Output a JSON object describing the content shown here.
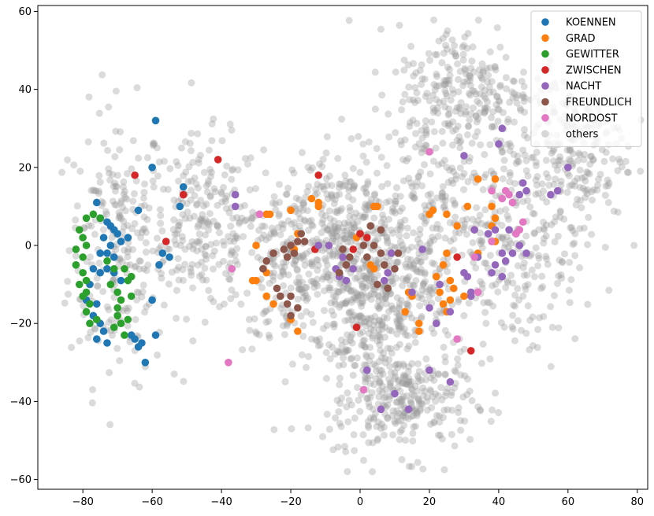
{
  "chart_data": {
    "type": "scatter",
    "title": "",
    "xlabel": "",
    "ylabel": "",
    "xlim": [
      -93,
      83
    ],
    "ylim": [
      -62.5,
      61.5
    ],
    "x_ticks": [
      -80,
      -60,
      -40,
      -20,
      0,
      20,
      40,
      60,
      80
    ],
    "y_ticks": [
      -60,
      -40,
      -20,
      0,
      20,
      40,
      60
    ],
    "grid": false,
    "legend_position": "top-right",
    "colors": {
      "KOENNEN": "#1f77b4",
      "GRAD": "#ff7f0e",
      "GEWITTER": "#2ca02c",
      "ZWISCHEN": "#d62728",
      "NACHT": "#9467bd",
      "FREUNDLICH": "#8c564b",
      "NORDOST": "#e377c2",
      "others": "#999999"
    },
    "series": [
      {
        "name": "KOENNEN",
        "points": [
          [
            -59,
            32
          ],
          [
            -60,
            20
          ],
          [
            -64,
            9
          ],
          [
            -52,
            10
          ],
          [
            -51,
            15
          ],
          [
            -76,
            11
          ],
          [
            -75,
            7
          ],
          [
            -73,
            6
          ],
          [
            -72,
            5
          ],
          [
            -71,
            4
          ],
          [
            -70,
            3
          ],
          [
            -74,
            2
          ],
          [
            -72,
            0
          ],
          [
            -69,
            1
          ],
          [
            -67,
            2
          ],
          [
            -75,
            -2
          ],
          [
            -73,
            -2
          ],
          [
            -71,
            -3
          ],
          [
            -77,
            -6
          ],
          [
            -75,
            -7
          ],
          [
            -73,
            -6
          ],
          [
            -71,
            -7
          ],
          [
            -69,
            -9
          ],
          [
            -78,
            -10
          ],
          [
            -79,
            -14
          ],
          [
            -76,
            -15
          ],
          [
            -77,
            -18
          ],
          [
            -75,
            -20
          ],
          [
            -74,
            -22
          ],
          [
            -76,
            -24
          ],
          [
            -73,
            -25
          ],
          [
            -66,
            -23
          ],
          [
            -64,
            -26
          ],
          [
            -65,
            -24
          ],
          [
            -63,
            -25
          ],
          [
            -62,
            -30
          ],
          [
            -60,
            -14
          ],
          [
            -59,
            -23
          ],
          [
            -57,
            -2
          ],
          [
            -55,
            -3
          ],
          [
            -58,
            -5
          ]
        ]
      },
      {
        "name": "GRAD",
        "points": [
          [
            -14,
            12
          ],
          [
            -12,
            11
          ],
          [
            -12,
            10
          ],
          [
            -20,
            9
          ],
          [
            -26,
            8
          ],
          [
            -27,
            8
          ],
          [
            -30,
            0
          ],
          [
            -30,
            -9
          ],
          [
            -31,
            -9
          ],
          [
            -27,
            -7
          ],
          [
            -27,
            -13
          ],
          [
            -25,
            -15
          ],
          [
            -20,
            -19
          ],
          [
            -18,
            -22
          ],
          [
            -19,
            -1
          ],
          [
            -18,
            3
          ],
          [
            4,
            10
          ],
          [
            5,
            10
          ],
          [
            3,
            -5
          ],
          [
            4,
            -6
          ],
          [
            -1,
            2
          ],
          [
            14,
            -12
          ],
          [
            15,
            -13
          ],
          [
            13,
            -17
          ],
          [
            17,
            -20
          ],
          [
            17,
            -22
          ],
          [
            20,
            8
          ],
          [
            21,
            9
          ],
          [
            25,
            8
          ],
          [
            28,
            5
          ],
          [
            31,
            10
          ],
          [
            34,
            17
          ],
          [
            38,
            5
          ],
          [
            39,
            7
          ],
          [
            39,
            17
          ],
          [
            38,
            10
          ],
          [
            39,
            1
          ],
          [
            24,
            -5
          ],
          [
            25,
            -2
          ],
          [
            22,
            -8
          ],
          [
            24,
            -15
          ],
          [
            26,
            -14
          ],
          [
            25,
            -17
          ],
          [
            23,
            -12
          ],
          [
            27,
            -11
          ],
          [
            34,
            -2
          ],
          [
            33,
            4
          ],
          [
            30,
            -13
          ],
          [
            26,
            -9
          ]
        ]
      },
      {
        "name": "GEWITTER",
        "points": [
          [
            -79,
            7
          ],
          [
            -77,
            8
          ],
          [
            -75,
            7
          ],
          [
            -81,
            4
          ],
          [
            -80,
            2
          ],
          [
            -79,
            0
          ],
          [
            -82,
            -1
          ],
          [
            -80,
            -3
          ],
          [
            -82,
            -5
          ],
          [
            -80,
            -7
          ],
          [
            -79,
            -9
          ],
          [
            -81,
            -10
          ],
          [
            -79,
            -12
          ],
          [
            -80,
            -13
          ],
          [
            -78,
            -15
          ],
          [
            -79,
            -17
          ],
          [
            -78,
            -20
          ],
          [
            -76,
            -19
          ],
          [
            -73,
            -4
          ],
          [
            -71,
            -6
          ],
          [
            -72,
            -10
          ],
          [
            -70,
            -12
          ],
          [
            -69,
            -14
          ],
          [
            -67,
            -9
          ],
          [
            -68,
            -6
          ],
          [
            -66,
            -8
          ],
          [
            -66,
            -13
          ],
          [
            -70,
            -18
          ],
          [
            -69,
            -20
          ],
          [
            -71,
            -21
          ],
          [
            -70,
            -16
          ],
          [
            -67,
            -19
          ],
          [
            -68,
            -23
          ]
        ]
      },
      {
        "name": "ZWISCHEN",
        "points": [
          [
            -65,
            18
          ],
          [
            -51,
            13
          ],
          [
            -56,
            1
          ],
          [
            -41,
            22
          ],
          [
            -12,
            18
          ],
          [
            -2,
            -1
          ],
          [
            0,
            3
          ],
          [
            2,
            2
          ],
          [
            -1,
            -21
          ],
          [
            28,
            -3
          ],
          [
            32,
            -27
          ],
          [
            -13,
            -1
          ]
        ]
      },
      {
        "name": "NACHT",
        "points": [
          [
            -36,
            13
          ],
          [
            -36,
            10
          ],
          [
            -29,
            8
          ],
          [
            -12,
            0
          ],
          [
            -9,
            0
          ],
          [
            -6,
            -8
          ],
          [
            -7,
            -6
          ],
          [
            -5,
            -3
          ],
          [
            -2,
            -6
          ],
          [
            -4,
            -9
          ],
          [
            8,
            -7
          ],
          [
            7,
            -9
          ],
          [
            9,
            -2
          ],
          [
            15,
            -12
          ],
          [
            18,
            -1
          ],
          [
            23,
            -10
          ],
          [
            26,
            -17
          ],
          [
            30,
            -7
          ],
          [
            31,
            -8
          ],
          [
            32,
            -12
          ],
          [
            32,
            -13
          ],
          [
            33,
            4
          ],
          [
            34,
            -3
          ],
          [
            37,
            3
          ],
          [
            39,
            4
          ],
          [
            41,
            -2
          ],
          [
            39,
            -5
          ],
          [
            38,
            -7
          ],
          [
            41,
            -8
          ],
          [
            42,
            -4
          ],
          [
            44,
            -2
          ],
          [
            46,
            0
          ],
          [
            45,
            3
          ],
          [
            43,
            4
          ],
          [
            48,
            -2
          ],
          [
            40,
            26
          ],
          [
            41,
            30
          ],
          [
            44,
            11
          ],
          [
            46,
            13
          ],
          [
            48,
            14
          ],
          [
            47,
            16
          ],
          [
            55,
            13
          ],
          [
            57,
            14
          ],
          [
            60,
            20
          ],
          [
            20,
            -32
          ],
          [
            26,
            -35
          ],
          [
            14,
            -42
          ],
          [
            10,
            -38
          ],
          [
            6,
            -42
          ],
          [
            2,
            -32
          ],
          [
            30,
            23
          ],
          [
            20,
            -16
          ],
          [
            22,
            -20
          ]
        ]
      },
      {
        "name": "FREUNDLICH",
        "points": [
          [
            -27,
            -4
          ],
          [
            -25,
            -2
          ],
          [
            -22,
            -1
          ],
          [
            -20,
            0
          ],
          [
            -18,
            1
          ],
          [
            -17,
            3
          ],
          [
            -16,
            1
          ],
          [
            -19,
            -2
          ],
          [
            -21,
            -3
          ],
          [
            -24,
            -11
          ],
          [
            -23,
            -13
          ],
          [
            -20,
            -13
          ],
          [
            -18,
            -16
          ],
          [
            -20,
            -18
          ],
          [
            -21,
            -15
          ],
          [
            -28,
            -6
          ],
          [
            -5,
            -1
          ],
          [
            -3,
            -3
          ],
          [
            -6,
            -7
          ],
          [
            -4,
            -5
          ],
          [
            1,
            0
          ],
          [
            2,
            -3
          ],
          [
            4,
            0
          ],
          [
            6,
            -2
          ],
          [
            7,
            -5
          ],
          [
            5,
            -10
          ],
          [
            8,
            -11
          ],
          [
            10,
            -6
          ],
          [
            11,
            -2
          ],
          [
            3,
            5
          ],
          [
            6,
            4
          ]
        ]
      },
      {
        "name": "NORDOST",
        "points": [
          [
            -37,
            -6
          ],
          [
            -38,
            -30
          ],
          [
            -29,
            8
          ],
          [
            20,
            24
          ],
          [
            33,
            -3
          ],
          [
            34,
            -12
          ],
          [
            38,
            1
          ],
          [
            38,
            14
          ],
          [
            41,
            12
          ],
          [
            42,
            14
          ],
          [
            43,
            13
          ],
          [
            45,
            3
          ],
          [
            46,
            4
          ],
          [
            47,
            6
          ],
          [
            28,
            -24
          ],
          [
            1,
            -37
          ],
          [
            44,
            11
          ]
        ]
      }
    ],
    "others_cluster_regions": [
      {
        "label": "others",
        "center": [
          -70,
          0
        ],
        "spread": [
          10,
          25
        ]
      },
      {
        "label": "others",
        "center": [
          -45,
          5
        ],
        "spread": [
          12,
          16
        ]
      },
      {
        "label": "others",
        "center": [
          -20,
          -5
        ],
        "spread": [
          12,
          15
        ]
      },
      {
        "label": "others",
        "center": [
          -5,
          5
        ],
        "spread": [
          10,
          14
        ]
      },
      {
        "label": "others",
        "center": [
          0,
          -25
        ],
        "spread": [
          10,
          18
        ]
      },
      {
        "label": "others",
        "center": [
          15,
          -40
        ],
        "spread": [
          12,
          10
        ]
      },
      {
        "label": "others",
        "center": [
          20,
          10
        ],
        "spread": [
          14,
          20
        ]
      },
      {
        "label": "others",
        "center": [
          30,
          40
        ],
        "spread": [
          14,
          12
        ]
      },
      {
        "label": "others",
        "center": [
          45,
          0
        ],
        "spread": [
          14,
          20
        ]
      },
      {
        "label": "others",
        "center": [
          60,
          25
        ],
        "spread": [
          12,
          14
        ]
      },
      {
        "label": "others",
        "center": [
          10,
          -10
        ],
        "spread": [
          12,
          14
        ]
      }
    ],
    "legend": [
      "KOENNEN",
      "GRAD",
      "GEWITTER",
      "ZWISCHEN",
      "NACHT",
      "FREUNDLICH",
      "NORDOST",
      "others"
    ]
  }
}
